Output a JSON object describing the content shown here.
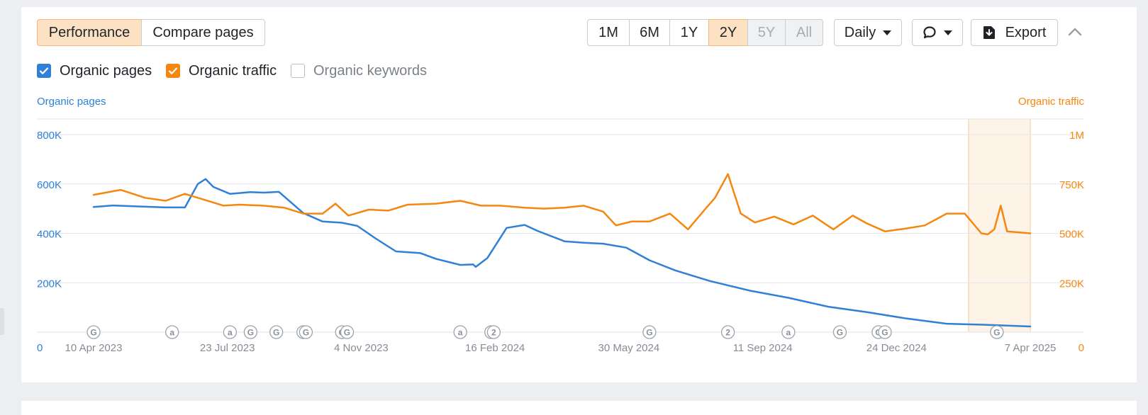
{
  "toolbar": {
    "tabs": [
      {
        "label": "Performance",
        "active": true
      },
      {
        "label": "Compare pages",
        "active": false
      }
    ],
    "ranges": [
      {
        "label": "1M",
        "state": "normal"
      },
      {
        "label": "6M",
        "state": "normal"
      },
      {
        "label": "1Y",
        "state": "normal"
      },
      {
        "label": "2Y",
        "state": "active"
      },
      {
        "label": "5Y",
        "state": "disabled"
      },
      {
        "label": "All",
        "state": "disabled"
      }
    ],
    "interval_label": "Daily",
    "export_label": "Export",
    "comment_icon": "comment-icon",
    "export_icon": "download-icon",
    "collapse_icon": "chevron-up-icon"
  },
  "legend": [
    {
      "label": "Organic pages",
      "checked": true,
      "color": "#2f80d6"
    },
    {
      "label": "Organic traffic",
      "checked": true,
      "color": "#f5870f"
    },
    {
      "label": "Organic keywords",
      "checked": false,
      "color": "#b9bec6"
    }
  ],
  "chart_data": {
    "type": "line",
    "left_axis_title": "Organic pages",
    "right_axis_title": "Organic traffic",
    "left_ticks": [
      "800K",
      "600K",
      "400K",
      "200K",
      "0"
    ],
    "right_ticks": [
      "1M",
      "750K",
      "500K",
      "250K",
      "0"
    ],
    "ylim_left": [
      0,
      800000
    ],
    "ylim_right": [
      0,
      1000000
    ],
    "x_ticks": [
      "10 Apr 2023",
      "23 Jul 2023",
      "4 Nov 2023",
      "16 Feb 2024",
      "30 May 2024",
      "11 Sep 2024",
      "24 Dec 2024",
      "7 Apr 2025"
    ],
    "xlim": [
      "2023-04-10",
      "2025-04-07"
    ],
    "highlight_range": [
      "2025-02-18",
      "2025-04-07"
    ],
    "colors": {
      "pages": "#2f80d6",
      "traffic": "#f5870f",
      "highlight": "#fdf3e7"
    },
    "series": [
      {
        "name": "Organic pages",
        "axis": "left",
        "x": [
          "2023-04-10",
          "2023-04-25",
          "2023-05-15",
          "2023-06-05",
          "2023-06-20",
          "2023-06-30",
          "2023-07-06",
          "2023-07-12",
          "2023-07-25",
          "2023-08-10",
          "2023-08-20",
          "2023-09-01",
          "2023-09-20",
          "2023-10-05",
          "2023-10-20",
          "2023-11-01",
          "2023-11-15",
          "2023-12-01",
          "2023-12-20",
          "2024-01-01",
          "2024-01-20",
          "2024-01-30",
          "2024-02-01",
          "2024-02-10",
          "2024-02-25",
          "2024-03-10",
          "2024-03-20",
          "2024-04-10",
          "2024-04-25",
          "2024-05-10",
          "2024-05-28",
          "2024-06-15",
          "2024-07-05",
          "2024-08-01",
          "2024-09-01",
          "2024-10-01",
          "2024-11-01",
          "2024-12-01",
          "2025-01-01",
          "2025-02-01",
          "2025-03-01",
          "2025-04-07"
        ],
        "values": [
          507000,
          513000,
          509000,
          505000,
          505000,
          600000,
          620000,
          588000,
          560000,
          567000,
          565000,
          568000,
          482000,
          448000,
          443000,
          430000,
          380000,
          327000,
          320000,
          297000,
          272000,
          274000,
          264000,
          300000,
          422000,
          434000,
          410000,
          368000,
          362000,
          358000,
          342000,
          291000,
          250000,
          207000,
          168000,
          139000,
          103000,
          81000,
          55000,
          34000,
          30000,
          23000
        ]
      },
      {
        "name": "Organic traffic",
        "axis": "right",
        "x": [
          "2023-04-10",
          "2023-05-01",
          "2023-05-20",
          "2023-06-05",
          "2023-06-20",
          "2023-07-05",
          "2023-07-20",
          "2023-08-01",
          "2023-08-20",
          "2023-09-05",
          "2023-09-20",
          "2023-10-05",
          "2023-10-15",
          "2023-10-25",
          "2023-11-10",
          "2023-11-25",
          "2023-12-10",
          "2024-01-01",
          "2024-01-20",
          "2024-02-05",
          "2024-02-20",
          "2024-03-10",
          "2024-03-25",
          "2024-04-10",
          "2024-04-25",
          "2024-05-10",
          "2024-05-20",
          "2024-06-01",
          "2024-06-15",
          "2024-07-01",
          "2024-07-15",
          "2024-07-28",
          "2024-08-05",
          "2024-08-15",
          "2024-08-25",
          "2024-09-05",
          "2024-09-20",
          "2024-10-05",
          "2024-10-20",
          "2024-11-05",
          "2024-11-20",
          "2024-12-01",
          "2024-12-15",
          "2025-01-01",
          "2025-01-15",
          "2025-02-01",
          "2025-02-15",
          "2025-02-28",
          "2025-03-05",
          "2025-03-10",
          "2025-03-15",
          "2025-03-20",
          "2025-04-07"
        ],
        "values": [
          695000,
          720000,
          680000,
          665000,
          700000,
          670000,
          640000,
          645000,
          640000,
          630000,
          600000,
          600000,
          650000,
          590000,
          620000,
          615000,
          645000,
          650000,
          665000,
          640000,
          640000,
          630000,
          625000,
          630000,
          640000,
          610000,
          540000,
          560000,
          560000,
          600000,
          520000,
          620000,
          680000,
          800000,
          600000,
          555000,
          585000,
          545000,
          590000,
          520000,
          590000,
          550000,
          510000,
          525000,
          540000,
          600000,
          600000,
          500000,
          495000,
          520000,
          640000,
          510000,
          500000
        ]
      }
    ],
    "event_markers": [
      {
        "date": "2023-04-10",
        "label": "G"
      },
      {
        "date": "2023-06-10",
        "label": "a"
      },
      {
        "date": "2023-07-25",
        "label": "a"
      },
      {
        "date": "2023-08-10",
        "label": "G"
      },
      {
        "date": "2023-08-30",
        "label": "G"
      },
      {
        "date": "2023-09-20",
        "label": "G"
      },
      {
        "date": "2023-09-22",
        "label": "G"
      },
      {
        "date": "2023-10-20",
        "label": "G"
      },
      {
        "date": "2023-10-24",
        "label": "G"
      },
      {
        "date": "2024-01-20",
        "label": "a"
      },
      {
        "date": "2024-02-13",
        "label": "2"
      },
      {
        "date": "2024-02-15",
        "label": "2"
      },
      {
        "date": "2024-06-15",
        "label": "G"
      },
      {
        "date": "2024-08-15",
        "label": "2"
      },
      {
        "date": "2024-10-01",
        "label": "a"
      },
      {
        "date": "2024-11-10",
        "label": "G"
      },
      {
        "date": "2024-12-10",
        "label": "G"
      },
      {
        "date": "2024-12-15",
        "label": "G"
      },
      {
        "date": "2025-03-12",
        "label": "G"
      }
    ]
  }
}
